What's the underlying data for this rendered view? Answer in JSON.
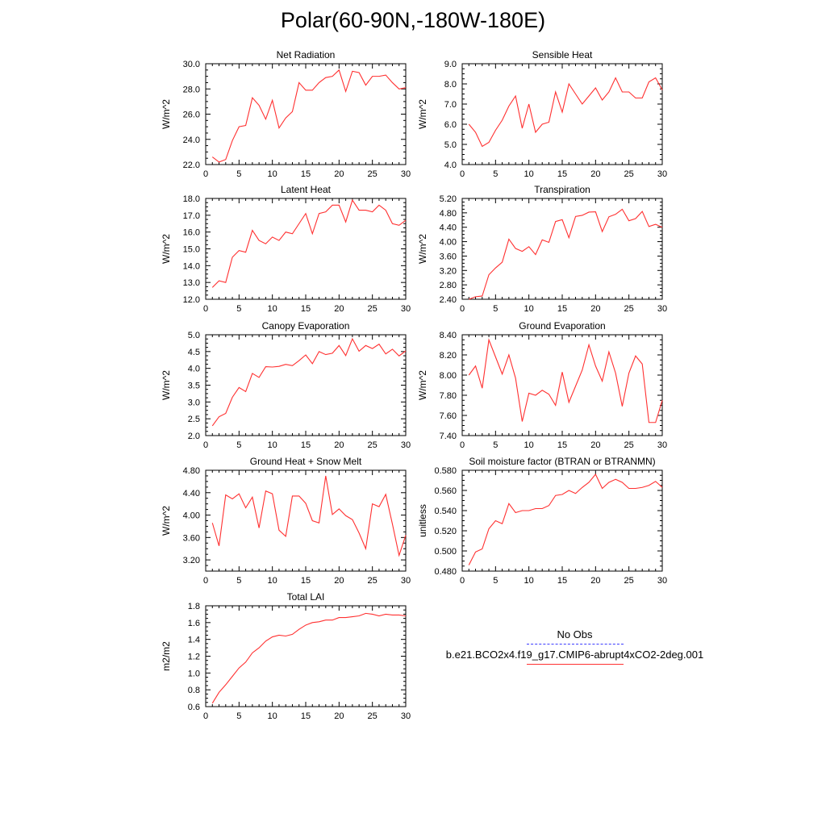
{
  "title": "Polar(60-90N,-180W-180E)",
  "legend": {
    "obs_label": "No Obs",
    "obs_color": "#3c3cff",
    "model_label": "b.e21.BCO2x4.f19_g17.CMIP6-abrupt4xCO2-2deg.001",
    "model_color": "#ff3030"
  },
  "chart_data": [
    {
      "type": "line",
      "title": "Net Radiation",
      "ylabel": "W/m^2",
      "xlim": [
        0,
        30
      ],
      "ylim": [
        22.0,
        30.0
      ],
      "xticks": [
        0,
        5,
        10,
        15,
        20,
        25,
        30
      ],
      "yticks": [
        22.0,
        24.0,
        26.0,
        28.0,
        30.0
      ],
      "ytick_format": 1,
      "x": [
        1,
        2,
        3,
        4,
        5,
        6,
        7,
        8,
        9,
        10,
        11,
        12,
        13,
        14,
        15,
        16,
        17,
        18,
        19,
        20,
        21,
        22,
        23,
        24,
        25,
        26,
        27,
        28,
        29,
        30
      ],
      "series": [
        {
          "color": "#ff3030",
          "values": [
            22.6,
            22.2,
            22.4,
            23.9,
            25.0,
            25.1,
            27.3,
            26.7,
            25.6,
            27.1,
            24.9,
            25.7,
            26.2,
            28.5,
            27.9,
            27.9,
            28.5,
            28.9,
            29.0,
            29.5,
            27.8,
            29.4,
            29.3,
            28.3,
            29.0,
            29.0,
            29.1,
            28.5,
            28.0,
            28.1
          ]
        }
      ]
    },
    {
      "type": "line",
      "title": "Sensible Heat",
      "ylabel": "W/m^2",
      "xlim": [
        0,
        30
      ],
      "ylim": [
        4.0,
        9.0
      ],
      "xticks": [
        0,
        5,
        10,
        15,
        20,
        25,
        30
      ],
      "yticks": [
        4.0,
        5.0,
        6.0,
        7.0,
        8.0,
        9.0
      ],
      "ytick_format": 1,
      "x": [
        1,
        2,
        3,
        4,
        5,
        6,
        7,
        8,
        9,
        10,
        11,
        12,
        13,
        14,
        15,
        16,
        17,
        18,
        19,
        20,
        21,
        22,
        23,
        24,
        25,
        26,
        27,
        28,
        29,
        30
      ],
      "series": [
        {
          "color": "#ff3030",
          "values": [
            6.0,
            5.6,
            4.9,
            5.1,
            5.7,
            6.2,
            6.9,
            7.4,
            5.8,
            7.0,
            5.6,
            6.0,
            6.1,
            7.6,
            6.6,
            8.0,
            7.5,
            7.0,
            7.4,
            7.8,
            7.2,
            7.6,
            8.3,
            7.6,
            7.6,
            7.3,
            7.3,
            8.1,
            8.3,
            7.7
          ]
        }
      ]
    },
    {
      "type": "line",
      "title": "Latent Heat",
      "ylabel": "W/m^2",
      "xlim": [
        0,
        30
      ],
      "ylim": [
        12.0,
        18.0
      ],
      "xticks": [
        0,
        5,
        10,
        15,
        20,
        25,
        30
      ],
      "yticks": [
        12.0,
        13.0,
        14.0,
        15.0,
        16.0,
        17.0,
        18.0
      ],
      "ytick_format": 1,
      "x": [
        1,
        2,
        3,
        4,
        5,
        6,
        7,
        8,
        9,
        10,
        11,
        12,
        13,
        14,
        15,
        16,
        17,
        18,
        19,
        20,
        21,
        22,
        23,
        24,
        25,
        26,
        27,
        28,
        29,
        30
      ],
      "series": [
        {
          "color": "#ff3030",
          "values": [
            12.7,
            13.1,
            13.0,
            14.5,
            14.9,
            14.8,
            16.1,
            15.5,
            15.3,
            15.7,
            15.5,
            16.0,
            15.9,
            16.5,
            17.1,
            15.9,
            17.1,
            17.2,
            17.6,
            17.6,
            16.6,
            17.9,
            17.3,
            17.3,
            17.2,
            17.6,
            17.3,
            16.5,
            16.4,
            16.7
          ]
        }
      ]
    },
    {
      "type": "line",
      "title": "Transpiration",
      "ylabel": "W/m^2",
      "xlim": [
        0,
        30
      ],
      "ylim": [
        2.4,
        5.2
      ],
      "xticks": [
        0,
        5,
        10,
        15,
        20,
        25,
        30
      ],
      "yticks": [
        2.4,
        2.8,
        3.2,
        3.6,
        4.0,
        4.4,
        4.8,
        5.2
      ],
      "ytick_format": 2,
      "x": [
        1,
        2,
        3,
        4,
        5,
        6,
        7,
        8,
        9,
        10,
        11,
        12,
        13,
        14,
        15,
        16,
        17,
        18,
        19,
        20,
        21,
        22,
        23,
        24,
        25,
        26,
        27,
        28,
        29,
        30
      ],
      "series": [
        {
          "color": "#ff3030",
          "values": [
            2.4,
            2.47,
            2.49,
            3.08,
            3.27,
            3.43,
            4.07,
            3.81,
            3.73,
            3.86,
            3.64,
            4.05,
            3.98,
            4.56,
            4.61,
            4.11,
            4.7,
            4.73,
            4.82,
            4.83,
            4.28,
            4.69,
            4.76,
            4.9,
            4.58,
            4.64,
            4.84,
            4.42,
            4.48,
            4.4
          ]
        }
      ]
    },
    {
      "type": "line",
      "title": "Canopy Evaporation",
      "ylabel": "W/m^2",
      "xlim": [
        0,
        30
      ],
      "ylim": [
        2.0,
        5.0
      ],
      "xticks": [
        0,
        5,
        10,
        15,
        20,
        25,
        30
      ],
      "yticks": [
        2.0,
        2.5,
        3.0,
        3.5,
        4.0,
        4.5,
        5.0
      ],
      "ytick_format": 1,
      "x": [
        1,
        2,
        3,
        4,
        5,
        6,
        7,
        8,
        9,
        10,
        11,
        12,
        13,
        14,
        15,
        16,
        17,
        18,
        19,
        20,
        21,
        22,
        23,
        24,
        25,
        26,
        27,
        28,
        29,
        30
      ],
      "series": [
        {
          "color": "#ff3030",
          "values": [
            2.29,
            2.56,
            2.66,
            3.14,
            3.43,
            3.31,
            3.85,
            3.73,
            4.05,
            4.04,
            4.06,
            4.12,
            4.08,
            4.23,
            4.4,
            4.14,
            4.5,
            4.41,
            4.45,
            4.68,
            4.38,
            4.88,
            4.51,
            4.68,
            4.59,
            4.72,
            4.43,
            4.57,
            4.37,
            4.52
          ]
        }
      ]
    },
    {
      "type": "line",
      "title": "Ground Evaporation",
      "ylabel": "W/m^2",
      "xlim": [
        0,
        30
      ],
      "ylim": [
        7.4,
        8.4
      ],
      "xticks": [
        0,
        5,
        10,
        15,
        20,
        25,
        30
      ],
      "yticks": [
        7.4,
        7.6,
        7.8,
        8.0,
        8.2,
        8.4
      ],
      "ytick_format": 2,
      "x": [
        1,
        2,
        3,
        4,
        5,
        6,
        7,
        8,
        9,
        10,
        11,
        12,
        13,
        14,
        15,
        16,
        17,
        18,
        19,
        20,
        21,
        22,
        23,
        24,
        25,
        26,
        27,
        28,
        29,
        30
      ],
      "series": [
        {
          "color": "#ff3030",
          "values": [
            8.0,
            8.09,
            7.87,
            8.35,
            8.18,
            8.01,
            8.2,
            7.97,
            7.54,
            7.82,
            7.8,
            7.85,
            7.81,
            7.7,
            8.03,
            7.73,
            7.89,
            8.05,
            8.3,
            8.09,
            7.94,
            8.23,
            8.02,
            7.69,
            8.02,
            8.19,
            8.11,
            7.53,
            7.53,
            7.75
          ]
        }
      ]
    },
    {
      "type": "line",
      "title": "Ground Heat + Snow Melt",
      "ylabel": "W/m^2",
      "xlim": [
        0,
        30
      ],
      "ylim": [
        3.0,
        4.8
      ],
      "xticks": [
        0,
        5,
        10,
        15,
        20,
        25,
        30
      ],
      "yticks": [
        3.2,
        3.6,
        4.0,
        4.4,
        4.8
      ],
      "ytick_format": 2,
      "x": [
        1,
        2,
        3,
        4,
        5,
        6,
        7,
        8,
        9,
        10,
        11,
        12,
        13,
        14,
        15,
        16,
        17,
        18,
        19,
        20,
        21,
        22,
        23,
        24,
        25,
        26,
        27,
        28,
        29,
        30
      ],
      "series": [
        {
          "color": "#ff3030",
          "values": [
            3.86,
            3.45,
            4.36,
            4.29,
            4.38,
            4.13,
            4.32,
            3.77,
            4.43,
            4.38,
            3.73,
            3.62,
            4.34,
            4.34,
            4.21,
            3.9,
            3.86,
            4.7,
            4.01,
            4.11,
            3.99,
            3.92,
            3.68,
            3.4,
            4.2,
            4.15,
            4.37,
            3.84,
            3.28,
            3.64
          ]
        }
      ]
    },
    {
      "type": "line",
      "title": "Soil moisture factor (BTRAN or BTRANMN)",
      "ylabel": "unitless",
      "xlim": [
        0,
        30
      ],
      "ylim": [
        0.48,
        0.58
      ],
      "xticks": [
        0,
        5,
        10,
        15,
        20,
        25,
        30
      ],
      "yticks": [
        0.48,
        0.5,
        0.52,
        0.54,
        0.56,
        0.58
      ],
      "ytick_format": 3,
      "x": [
        1,
        2,
        3,
        4,
        5,
        6,
        7,
        8,
        9,
        10,
        11,
        12,
        13,
        14,
        15,
        16,
        17,
        18,
        19,
        20,
        21,
        22,
        23,
        24,
        25,
        26,
        27,
        28,
        29,
        30
      ],
      "series": [
        {
          "color": "#ff3030",
          "values": [
            0.486,
            0.499,
            0.502,
            0.522,
            0.53,
            0.527,
            0.547,
            0.538,
            0.54,
            0.54,
            0.542,
            0.542,
            0.545,
            0.555,
            0.556,
            0.56,
            0.557,
            0.563,
            0.568,
            0.576,
            0.562,
            0.568,
            0.571,
            0.568,
            0.562,
            0.562,
            0.563,
            0.565,
            0.569,
            0.563
          ]
        }
      ]
    },
    {
      "type": "line",
      "title": "Total LAI",
      "ylabel": "m2/m2",
      "xlim": [
        0,
        30
      ],
      "ylim": [
        0.6,
        1.8
      ],
      "xticks": [
        0,
        5,
        10,
        15,
        20,
        25,
        30
      ],
      "yticks": [
        0.6,
        0.8,
        1.0,
        1.2,
        1.4,
        1.6,
        1.8
      ],
      "ytick_format": 1,
      "x": [
        1,
        2,
        3,
        4,
        5,
        6,
        7,
        8,
        9,
        10,
        11,
        12,
        13,
        14,
        15,
        16,
        17,
        18,
        19,
        20,
        21,
        22,
        23,
        24,
        25,
        26,
        27,
        28,
        29,
        30
      ],
      "series": [
        {
          "color": "#ff3030",
          "values": [
            0.64,
            0.77,
            0.86,
            0.96,
            1.06,
            1.13,
            1.24,
            1.3,
            1.38,
            1.43,
            1.45,
            1.44,
            1.46,
            1.52,
            1.57,
            1.6,
            1.61,
            1.63,
            1.63,
            1.66,
            1.66,
            1.67,
            1.68,
            1.71,
            1.7,
            1.68,
            1.7,
            1.69,
            1.69,
            1.68
          ]
        }
      ]
    }
  ]
}
